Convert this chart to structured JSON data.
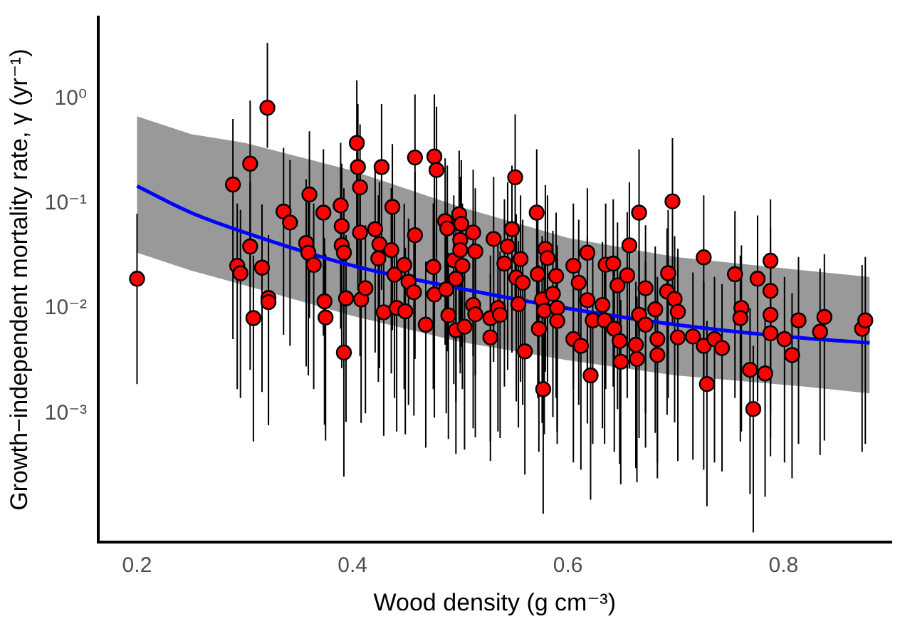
{
  "chart_data": {
    "type": "scatter",
    "xlabel": "Wood density (g cm⁻³)",
    "ylabel": "Growth−independent mortality rate, γ (yr⁻¹)",
    "xlim": [
      0.164,
      0.9
    ],
    "xticks": [
      0.2,
      0.4,
      0.6,
      0.8
    ],
    "ylim": [
      5.9e-05,
      6
    ],
    "yticks": [
      {
        "value": 1,
        "label": "10⁰"
      },
      {
        "value": 0.1,
        "label": "10⁻¹"
      },
      {
        "value": 0.01,
        "label": "10⁻²"
      },
      {
        "value": 0.001,
        "label": "10⁻³"
      }
    ],
    "log": "y",
    "grid": false,
    "legend": false,
    "marker": "circle",
    "series": [
      {
        "type": "scatter",
        "color": "#ff0000",
        "x": [
          0.2,
          0.289,
          0.293,
          0.296,
          0.305,
          0.305,
          0.308,
          0.316,
          0.321,
          0.322,
          0.322,
          0.336,
          0.342,
          0.357,
          0.36,
          0.359,
          0.364,
          0.374,
          0.375,
          0.373,
          0.389,
          0.39,
          0.39,
          0.392,
          0.392,
          0.394,
          0.404,
          0.405,
          0.407,
          0.407,
          0.408,
          0.412,
          0.421,
          0.425,
          0.424,
          0.427,
          0.429,
          0.436,
          0.437,
          0.439,
          0.441,
          0.448,
          0.449,
          0.452,
          0.457,
          0.458,
          0.458,
          0.468,
          0.475,
          0.476,
          0.476,
          0.478,
          0.486,
          0.488,
          0.487,
          0.489,
          0.494,
          0.496,
          0.496,
          0.499,
          0.5,
          0.501,
          0.5,
          0.502,
          0.504,
          0.512,
          0.514,
          0.512,
          0.514,
          0.528,
          0.528,
          0.531,
          0.535,
          0.537,
          0.541,
          0.544,
          0.548,
          0.551,
          0.552,
          0.554,
          0.558,
          0.56,
          0.556,
          0.571,
          0.573,
          0.572,
          0.576,
          0.577,
          0.578,
          0.579,
          0.581,
          0.586,
          0.589,
          0.59,
          0.59,
          0.605,
          0.605,
          0.61,
          0.612,
          0.618,
          0.618,
          0.621,
          0.623,
          0.632,
          0.635,
          0.634,
          0.642,
          0.643,
          0.646,
          0.648,
          0.649,
          0.655,
          0.657,
          0.663,
          0.664,
          0.666,
          0.666,
          0.672,
          0.672,
          0.681,
          0.683,
          0.683,
          0.693,
          0.692,
          0.697,
          0.699,
          0.702,
          0.702,
          0.716,
          0.726,
          0.726,
          0.729,
          0.736,
          0.743,
          0.755,
          0.761,
          0.76,
          0.769,
          0.772,
          0.776,
          0.783,
          0.788,
          0.788,
          0.788,
          0.788,
          0.801,
          0.808,
          0.814,
          0.834,
          0.838,
          0.873,
          0.876
        ],
        "values": [
          0.0192,
          0.152,
          0.0255,
          0.0217,
          0.24,
          0.039,
          0.0081,
          0.0245,
          0.82,
          0.0126,
          0.0115,
          0.084,
          0.066,
          0.042,
          0.122,
          0.034,
          0.026,
          0.0117,
          0.0082,
          0.082,
          0.096,
          0.061,
          0.04,
          0.034,
          0.0038,
          0.0125,
          0.378,
          0.223,
          0.143,
          0.053,
          0.0122,
          0.0156,
          0.057,
          0.041,
          0.03,
          0.223,
          0.0092,
          0.036,
          0.093,
          0.021,
          0.0101,
          0.026,
          0.0094,
          0.018,
          0.0143,
          0.05,
          0.275,
          0.007,
          0.0249,
          0.0136,
          0.281,
          0.209,
          0.068,
          0.058,
          0.0152,
          0.0086,
          0.0288,
          0.0062,
          0.0192,
          0.079,
          0.045,
          0.064,
          0.036,
          0.0255,
          0.0067,
          0.053,
          0.035,
          0.0108,
          0.0088,
          0.0081,
          0.0053,
          0.046,
          0.0101,
          0.0087,
          0.0268,
          0.039,
          0.057,
          0.178,
          0.0197,
          0.011,
          0.0176,
          0.0039,
          0.0296,
          0.082,
          0.0064,
          0.0212,
          0.0122,
          0.0017,
          0.0095,
          0.037,
          0.0303,
          0.0138,
          0.0204,
          0.0101,
          0.0076,
          0.0255,
          0.0051,
          0.0176,
          0.0044,
          0.034,
          0.012,
          0.0023,
          0.0077,
          0.0108,
          0.0261,
          0.0077,
          0.0268,
          0.0064,
          0.0166,
          0.0049,
          0.0031,
          0.0207,
          0.04,
          0.0045,
          0.0033,
          0.0087,
          0.082,
          0.0156,
          0.007,
          0.0098,
          0.0051,
          0.0036,
          0.0217,
          0.0145,
          0.105,
          0.0123,
          0.0093,
          0.0053,
          0.0054,
          0.0307,
          0.0044,
          0.0019,
          0.0051,
          0.0042,
          0.0212,
          0.0101,
          0.0081,
          0.0026,
          0.0011,
          0.0192,
          0.0024,
          0.0285,
          0.0147,
          0.0087,
          0.0058,
          0.0051,
          0.0036,
          0.0077,
          0.006,
          0.0083,
          0.0064,
          0.0077
        ],
        "errors": [
          [
            0.0019,
            0.08
          ],
          [
            0.0051,
            0.64
          ],
          [
            0.0017,
            0.1
          ],
          [
            0.0014,
            0.087
          ],
          [
            0.016,
            0.96
          ],
          [
            0.0026,
            0.16
          ],
          [
            0.00054,
            0.032
          ],
          [
            0.0016,
            0.098
          ],
          [
            0.34,
            3.4
          ],
          [
            0.00084,
            0.05
          ],
          [
            0.00077,
            0.046
          ],
          [
            0.0056,
            0.34
          ],
          [
            0.0044,
            0.26
          ],
          [
            0.0028,
            0.17
          ],
          [
            0.0081,
            0.49
          ],
          [
            0.0023,
            0.14
          ],
          [
            0.0017,
            0.1
          ],
          [
            0.00078,
            0.047
          ],
          [
            0.00055,
            0.033
          ],
          [
            0.0055,
            0.33
          ],
          [
            0.0064,
            0.38
          ],
          [
            0.0041,
            0.24
          ],
          [
            0.0027,
            0.16
          ],
          [
            0.0023,
            0.14
          ],
          [
            0.00025,
            0.015
          ],
          [
            0.00083,
            0.05
          ],
          [
            0.025,
            1.5
          ],
          [
            0.015,
            0.89
          ],
          [
            0.0095,
            0.57
          ],
          [
            0.0035,
            0.21
          ],
          [
            0.00081,
            0.049
          ],
          [
            0.001,
            0.062
          ],
          [
            0.0038,
            0.23
          ],
          [
            0.0027,
            0.16
          ],
          [
            0.002,
            0.12
          ],
          [
            0.015,
            0.89
          ],
          [
            0.00061,
            0.037
          ],
          [
            0.0024,
            0.14
          ],
          [
            0.0062,
            0.37
          ],
          [
            0.0014,
            0.084
          ],
          [
            0.00067,
            0.04
          ],
          [
            0.0017,
            0.1
          ],
          [
            0.00063,
            0.038
          ],
          [
            0.0012,
            0.072
          ],
          [
            0.00095,
            0.057
          ],
          [
            0.0033,
            0.2
          ],
          [
            0.018,
            1.1
          ],
          [
            0.00047,
            0.028
          ],
          [
            0.0017,
            0.1
          ],
          [
            0.00091,
            0.054
          ],
          [
            0.019,
            1.1
          ],
          [
            0.014,
            0.84
          ],
          [
            0.0045,
            0.27
          ],
          [
            0.0039,
            0.23
          ],
          [
            0.001,
            0.061
          ],
          [
            0.00057,
            0.034
          ],
          [
            0.0019,
            0.12
          ],
          [
            0.00041,
            0.025
          ],
          [
            0.0013,
            0.077
          ],
          [
            0.0053,
            0.32
          ],
          [
            0.003,
            0.18
          ],
          [
            0.0043,
            0.26
          ],
          [
            0.0024,
            0.14
          ],
          [
            0.0017,
            0.1
          ],
          [
            0.00045,
            0.027
          ],
          [
            0.0035,
            0.21
          ],
          [
            0.0023,
            0.14
          ],
          [
            0.00072,
            0.043
          ],
          [
            0.00059,
            0.035
          ],
          [
            0.00054,
            0.032
          ],
          [
            0.00035,
            0.021
          ],
          [
            0.0031,
            0.18
          ],
          [
            0.00067,
            0.04
          ],
          [
            0.00058,
            0.035
          ],
          [
            0.0018,
            0.11
          ],
          [
            0.0026,
            0.16
          ],
          [
            0.0038,
            0.23
          ],
          [
            0.012,
            0.71
          ],
          [
            0.0013,
            0.079
          ],
          [
            0.00073,
            0.044
          ],
          [
            0.0012,
            0.07
          ],
          [
            0.00026,
            0.016
          ],
          [
            0.002,
            0.12
          ],
          [
            0.0055,
            0.33
          ],
          [
            0.00043,
            0.026
          ],
          [
            0.0014,
            0.085
          ],
          [
            0.00081,
            0.049
          ],
          [
            0.00011,
            0.0068
          ],
          [
            0.00063,
            0.038
          ],
          [
            0.0025,
            0.15
          ],
          [
            0.002,
            0.12
          ],
          [
            0.00092,
            0.055
          ],
          [
            0.0014,
            0.082
          ],
          [
            0.00067,
            0.04
          ],
          [
            0.00051,
            0.03
          ],
          [
            0.0017,
            0.1
          ],
          [
            0.00034,
            0.02
          ],
          [
            0.0012,
            0.07
          ],
          [
            0.00029,
            0.018
          ],
          [
            0.0023,
            0.14
          ],
          [
            0.0008,
            0.048
          ],
          [
            0.00015,
            0.0092
          ],
          [
            0.00051,
            0.031
          ],
          [
            0.00072,
            0.043
          ],
          [
            0.0017,
            0.1
          ],
          [
            0.00051,
            0.031
          ],
          [
            0.0018,
            0.11
          ],
          [
            0.00043,
            0.026
          ],
          [
            0.0011,
            0.066
          ],
          [
            0.00033,
            0.02
          ],
          [
            0.00021,
            0.012
          ],
          [
            0.0014,
            0.083
          ],
          [
            0.0027,
            0.16
          ],
          [
            0.0003,
            0.018
          ],
          [
            0.00022,
            0.013
          ],
          [
            0.00058,
            0.035
          ],
          [
            0.0055,
            0.33
          ],
          [
            0.001,
            0.062
          ],
          [
            0.00047,
            0.028
          ],
          [
            0.00065,
            0.039
          ],
          [
            0.00034,
            0.02
          ],
          [
            0.00024,
            0.014
          ],
          [
            0.0014,
            0.087
          ],
          [
            0.00097,
            0.058
          ],
          [
            0.007,
            0.42
          ],
          [
            0.00082,
            0.049
          ],
          [
            0.00062,
            0.037
          ],
          [
            0.00035,
            0.021
          ],
          [
            0.00036,
            0.022
          ],
          [
            0.002,
            0.12
          ],
          [
            0.00029,
            0.018
          ],
          [
            0.00013,
            0.0076
          ],
          [
            0.00034,
            0.02
          ],
          [
            0.00028,
            0.017
          ],
          [
            0.0014,
            0.085
          ],
          [
            0.00067,
            0.04
          ],
          [
            0.00054,
            0.032
          ],
          [
            0.00017,
            0.01
          ],
          [
            7.3e-05,
            0.0044
          ],
          [
            0.0013,
            0.077
          ],
          [
            0.00016,
            0.0096
          ],
          [
            0.0019,
            0.11
          ],
          [
            0.00098,
            0.059
          ],
          [
            0.00058,
            0.035
          ],
          [
            0.00039,
            0.023
          ],
          [
            0.00034,
            0.02
          ],
          [
            0.00024,
            0.014
          ],
          [
            0.00051,
            0.031
          ],
          [
            0.0004,
            0.024
          ],
          [
            0.00055,
            0.033
          ],
          [
            0.00043,
            0.026
          ],
          [
            0.00051,
            0.031
          ]
        ]
      },
      {
        "type": "line",
        "color": "#0000ff",
        "marker": "none",
        "x": [
          0.2,
          0.25,
          0.3,
          0.4,
          0.5,
          0.6,
          0.7,
          0.82,
          0.88
        ],
        "values": [
          0.147,
          0.082,
          0.053,
          0.0256,
          0.0155,
          0.01,
          0.007,
          0.0052,
          0.0047
        ],
        "upper": [
          0.68,
          0.46,
          0.38,
          0.206,
          0.093,
          0.047,
          0.031,
          0.023,
          0.02
        ],
        "lower": [
          0.034,
          0.023,
          0.0166,
          0.0085,
          0.0048,
          0.0032,
          0.0023,
          0.0018,
          0.00155
        ]
      }
    ]
  }
}
